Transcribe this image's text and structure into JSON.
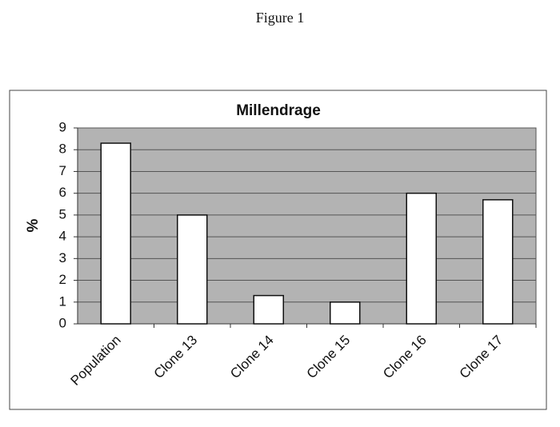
{
  "figure_label": "Figure 1",
  "chart_data": {
    "type": "bar",
    "title": "Millendrage",
    "y_label": "%",
    "categories": [
      "Population",
      "Clone 13",
      "Clone 14",
      "Clone 15",
      "Clone 16",
      "Clone 17"
    ],
    "values": [
      8.3,
      5.0,
      1.3,
      1.0,
      6.0,
      5.7
    ],
    "color": "#ffffff",
    "ylim": [
      0,
      9
    ],
    "yticks": [
      0,
      1,
      2,
      3,
      4,
      5,
      6,
      7,
      8,
      9
    ],
    "grid": true
  }
}
